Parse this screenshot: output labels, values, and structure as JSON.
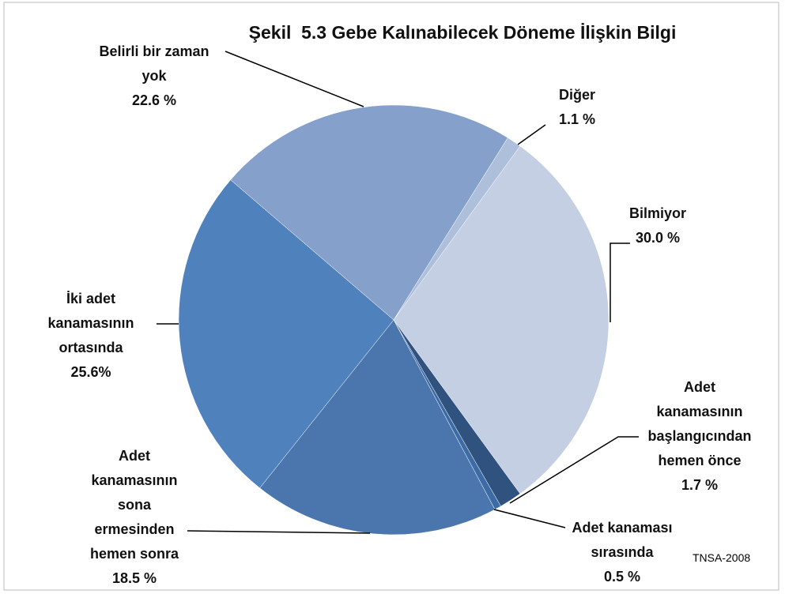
{
  "chart_data": {
    "type": "pie",
    "title": "Şekil  5.3 Gebe Kalınabilecek Döneme İlişkin Bilgi",
    "categories": [
      "Bilmiyor",
      "Adet\nkanamasının\nbaşlangıcından\nhemen önce",
      "Adet kanaması\nsırasında",
      "Adet\nkanamasının\nsona\nermesinden\nhemen sonra",
      "İki adet\nkanamasının\nortasında",
      "Belirli bir zaman\nyok",
      "Diğer"
    ],
    "values": [
      30.0,
      1.7,
      0.5,
      18.5,
      25.6,
      22.6,
      1.1
    ],
    "value_labels": [
      "30.0 %",
      "1.7 %",
      "0.5 %",
      "18.5 %",
      "25.6%",
      "22.6 %",
      "1.1 %"
    ],
    "colors": [
      "#c5cfe3",
      "#2f527f",
      "#3d6ba6",
      "#4a76ad",
      "#4f81bd",
      "#85a0cb",
      "#aebfdc"
    ],
    "source": "TNSA-2008"
  }
}
